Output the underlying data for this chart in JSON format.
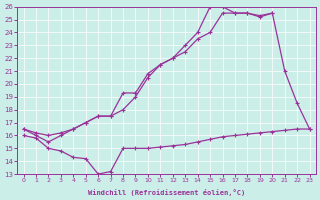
{
  "xlabel": "Windchill (Refroidissement éolien,°C)",
  "xlim": [
    -0.5,
    23.5
  ],
  "ylim": [
    13,
    26
  ],
  "xticks": [
    0,
    1,
    2,
    3,
    4,
    5,
    6,
    7,
    8,
    9,
    10,
    11,
    12,
    13,
    14,
    15,
    16,
    17,
    18,
    19,
    20,
    21,
    22,
    23
  ],
  "yticks": [
    13,
    14,
    15,
    16,
    17,
    18,
    19,
    20,
    21,
    22,
    23,
    24,
    25,
    26
  ],
  "bg_color": "#cceee8",
  "line_color": "#993399",
  "line_A_x": [
    0,
    1,
    2,
    3,
    4,
    5,
    6,
    7,
    8,
    9,
    10,
    11,
    12,
    13,
    14,
    15,
    16,
    17,
    18,
    19,
    20,
    21,
    22,
    23
  ],
  "line_A_y": [
    16.5,
    16.2,
    16.0,
    16.2,
    16.5,
    17.0,
    17.5,
    17.5,
    18.0,
    19.0,
    20.5,
    21.5,
    22.0,
    22.5,
    23.5,
    24.0,
    25.5,
    25.5,
    25.5,
    25.3,
    25.5,
    21.0,
    18.5,
    16.5
  ],
  "line_B_x": [
    0,
    1,
    2,
    3,
    4,
    5,
    6,
    7,
    8,
    9,
    10,
    11,
    12,
    13,
    14,
    15,
    16,
    17,
    18,
    19,
    20
  ],
  "line_B_y": [
    16.5,
    16.0,
    15.5,
    16.0,
    16.5,
    17.0,
    17.5,
    17.5,
    19.3,
    19.3,
    20.8,
    21.5,
    22.0,
    23.0,
    24.0,
    26.0,
    26.0,
    25.5,
    25.5,
    25.2,
    25.5
  ],
  "line_C_x": [
    0,
    1,
    2,
    3,
    4,
    5,
    6,
    7,
    8,
    9,
    10,
    11,
    12,
    13,
    14,
    15,
    16,
    17,
    18,
    19,
    20,
    21,
    22,
    23
  ],
  "line_C_y": [
    16.0,
    15.8,
    15.0,
    14.8,
    14.3,
    14.2,
    13.0,
    13.2,
    15.0,
    15.0,
    15.0,
    15.1,
    15.2,
    15.3,
    15.5,
    15.7,
    15.9,
    16.0,
    16.1,
    16.2,
    16.3,
    16.4,
    16.5,
    16.5
  ]
}
